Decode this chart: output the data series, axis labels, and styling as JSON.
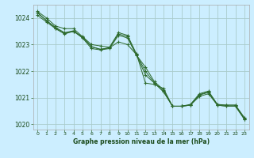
{
  "title": "Graphe pression niveau de la mer (hPa)",
  "background_color": "#cceeff",
  "grid_color": "#aacccc",
  "line_color": "#2d6a2d",
  "xlim": [
    -0.5,
    23.5
  ],
  "ylim": [
    1019.8,
    1024.5
  ],
  "yticks": [
    1020,
    1021,
    1022,
    1023,
    1024
  ],
  "xticks": [
    0,
    1,
    2,
    3,
    4,
    5,
    6,
    7,
    8,
    9,
    10,
    11,
    12,
    13,
    14,
    15,
    16,
    17,
    18,
    19,
    20,
    21,
    22,
    23
  ],
  "series": [
    [
      1024.25,
      1024.0,
      1023.7,
      1023.6,
      1023.6,
      1023.3,
      1023.0,
      1022.95,
      1022.9,
      1023.45,
      1023.35,
      1022.65,
      1021.55,
      1021.5,
      1021.35,
      1020.68,
      1020.68,
      1020.75,
      1021.15,
      1021.25,
      1020.75,
      1020.72,
      1020.72,
      1020.25
    ],
    [
      1024.1,
      1023.85,
      1023.6,
      1023.4,
      1023.5,
      1023.25,
      1022.85,
      1022.8,
      1022.85,
      1023.35,
      1023.25,
      1022.6,
      1022.15,
      1021.6,
      1021.3,
      1020.68,
      1020.68,
      1020.72,
      1021.1,
      1021.2,
      1020.72,
      1020.72,
      1020.72,
      1020.22
    ],
    [
      1024.2,
      1023.9,
      1023.65,
      1023.45,
      1023.52,
      1023.28,
      1022.92,
      1022.82,
      1022.88,
      1023.1,
      1023.0,
      1022.62,
      1021.85,
      1021.55,
      1021.22,
      1020.68,
      1020.68,
      1020.72,
      1021.05,
      1021.15,
      1020.72,
      1020.68,
      1020.68,
      1020.18
    ],
    [
      1024.2,
      1023.9,
      1023.62,
      1023.42,
      1023.5,
      1023.28,
      1022.92,
      1022.82,
      1022.88,
      1023.4,
      1023.3,
      1022.62,
      1022.0,
      1021.55,
      1021.25,
      1020.68,
      1020.68,
      1020.72,
      1021.12,
      1021.22,
      1020.72,
      1020.68,
      1020.68,
      1020.2
    ]
  ]
}
